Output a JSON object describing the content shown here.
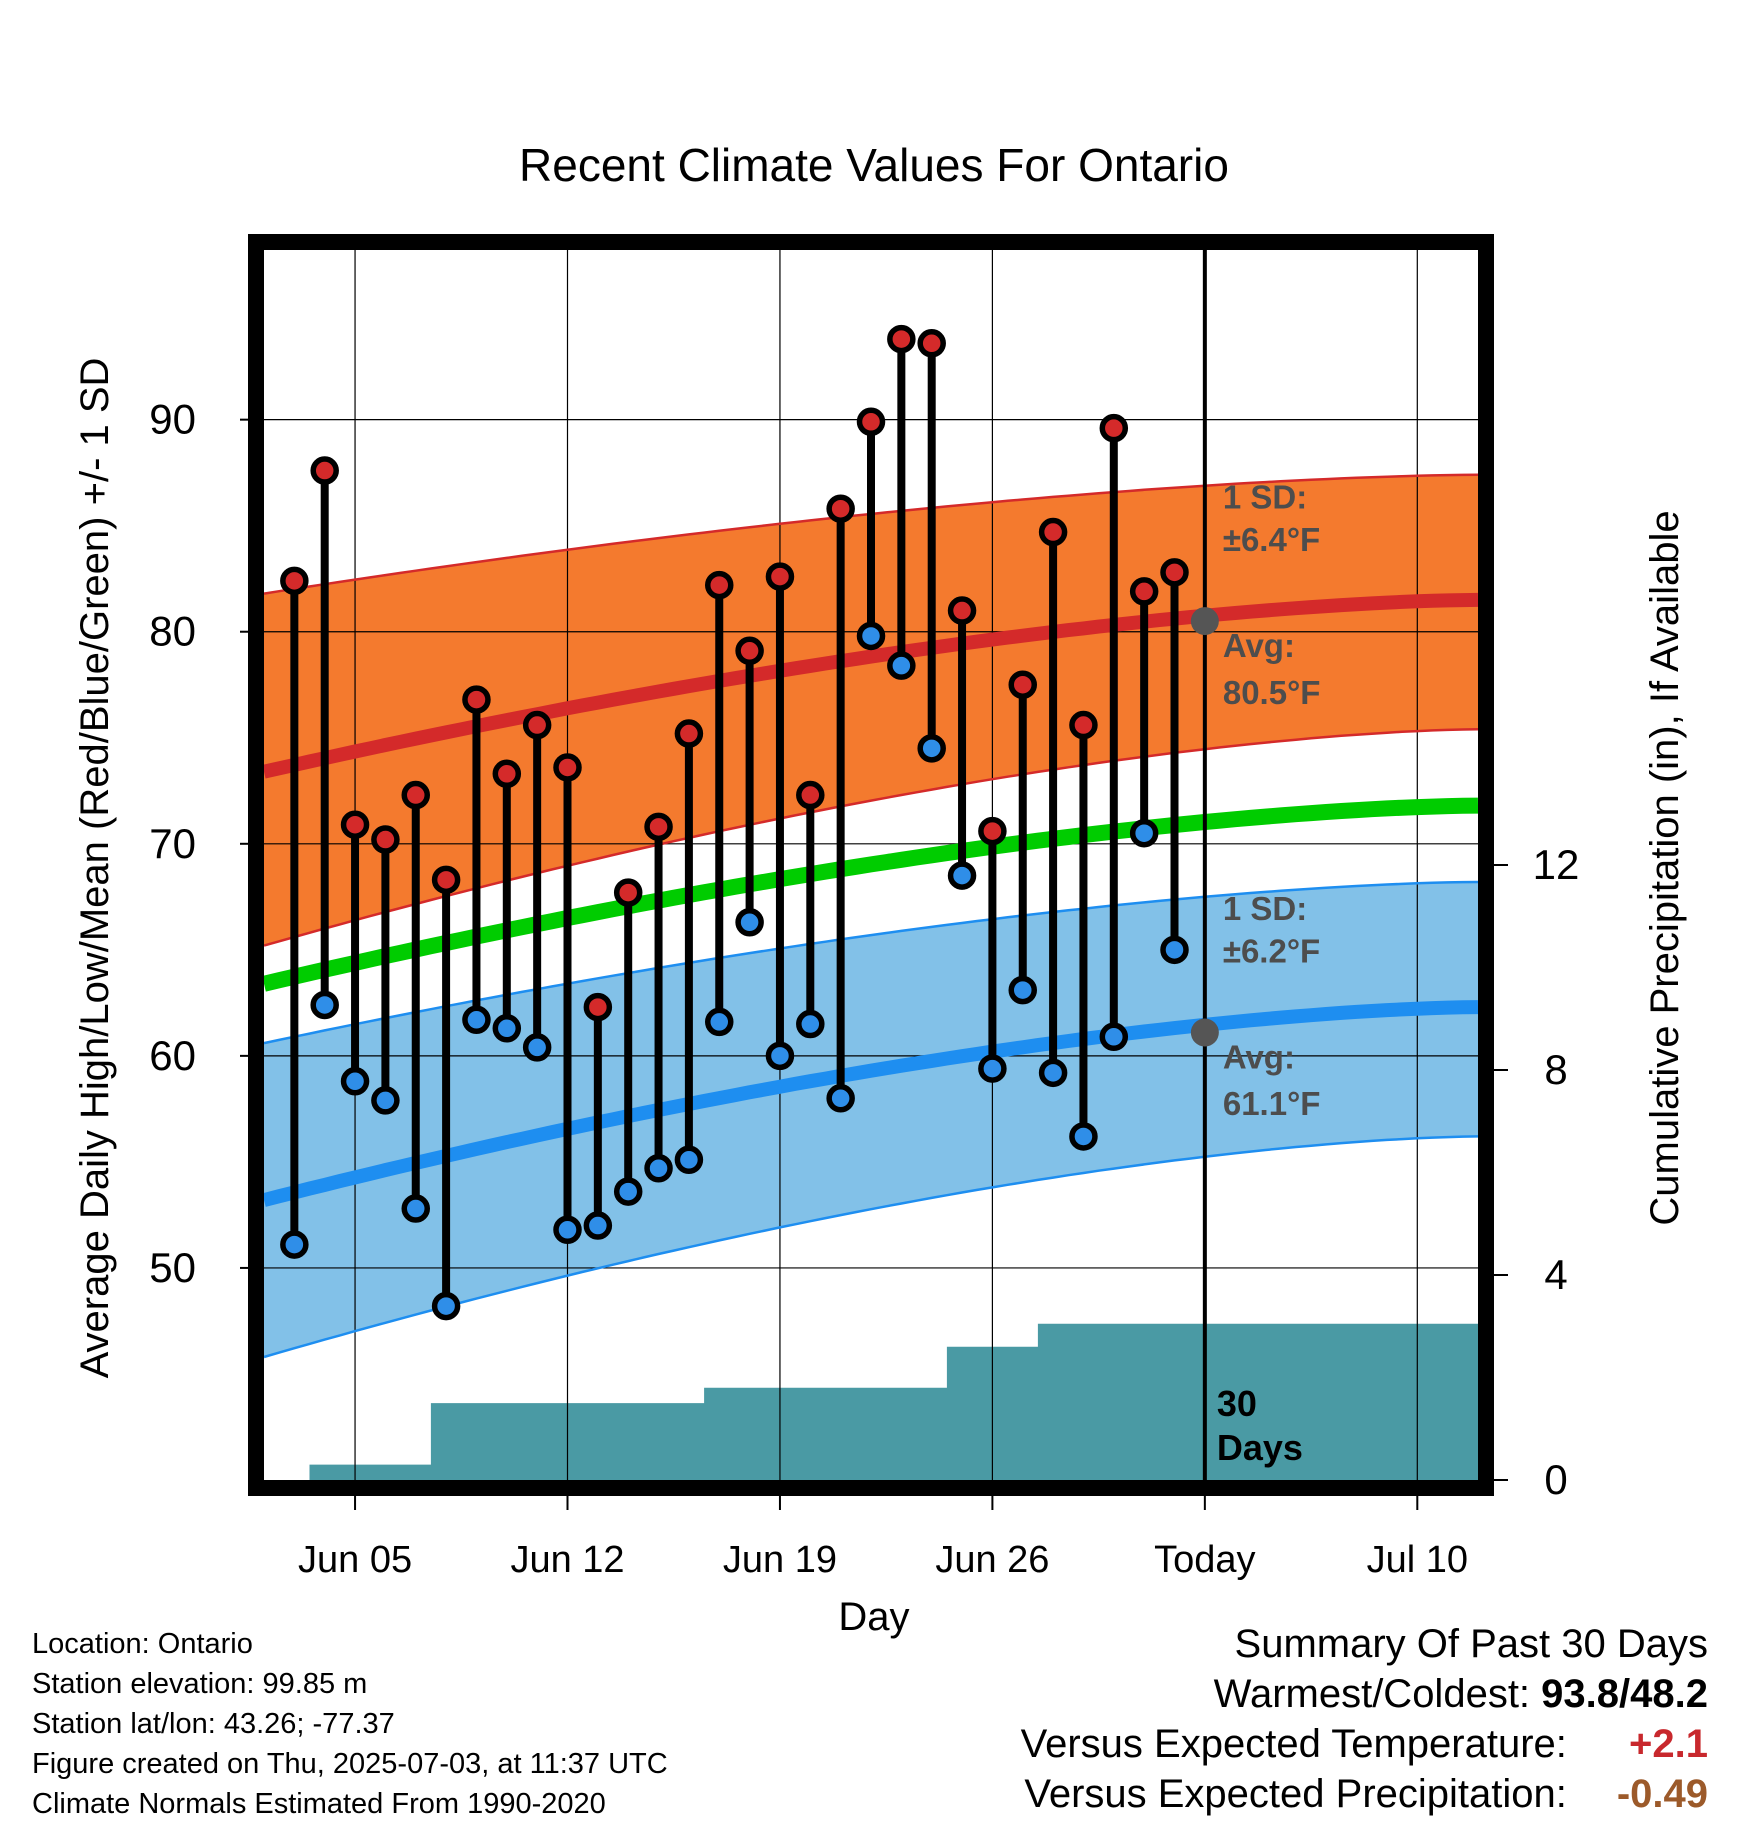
{
  "chart_data": {
    "type": "line",
    "title": "Recent Climate Values For Ontario",
    "xlabel": "Day",
    "ylabel": "Average Daily High/Low/Mean (Red/Blue/Green) +/- 1 SD",
    "y2label": "Cumulative Precipitation (in), If Available",
    "ylim": [
      40,
      98
    ],
    "y2lim": [
      0,
      24
    ],
    "yticks": [
      50,
      60,
      70,
      80,
      90
    ],
    "y2ticks": [
      0,
      4,
      8,
      12
    ],
    "x_range_days": [
      -31,
      9
    ],
    "xticks": [
      {
        "day": -28,
        "label": "Jun 05"
      },
      {
        "day": -21,
        "label": "Jun 12"
      },
      {
        "day": -14,
        "label": "Jun 19"
      },
      {
        "day": -7,
        "label": "Jun 26"
      },
      {
        "day": 0,
        "label": "Today"
      },
      {
        "day": 7,
        "label": "Jul 10"
      }
    ],
    "grid": true,
    "today_label": "30 Days",
    "normals": {
      "high_mean": {
        "start": 73.4,
        "end": 81.5
      },
      "high_sd_upper": {
        "start": 81.8,
        "end": 87.4
      },
      "high_sd_lower": {
        "start": 65.2,
        "end": 75.4
      },
      "mean": {
        "start": 63.4,
        "end": 71.8
      },
      "low_mean": {
        "start": 53.2,
        "end": 62.3
      },
      "low_sd_upper": {
        "start": 60.6,
        "end": 68.2
      },
      "low_sd_lower": {
        "start": 45.8,
        "end": 56.2
      }
    },
    "annotations": [
      {
        "label": "1 SD:",
        "value": "±6.4°F"
      },
      {
        "label": "Avg:",
        "value": "80.5°F"
      },
      {
        "label": "1 SD:",
        "value": "±6.2°F"
      },
      {
        "label": "Avg:",
        "value": "61.1°F"
      }
    ],
    "today_avg_high": 80.5,
    "today_avg_low": 61.1,
    "series": [
      {
        "name": "High",
        "color": "#d42a2a",
        "x": [
          -30,
          -29,
          -28,
          -27,
          -26,
          -25,
          -24,
          -23,
          -22,
          -21,
          -20,
          -19,
          -18,
          -17,
          -16,
          -15,
          -14,
          -13,
          -12,
          -11,
          -10,
          -9,
          -8,
          -7,
          -6,
          -5,
          -4,
          -3,
          -2,
          -1
        ],
        "values": [
          82.4,
          87.6,
          70.9,
          70.2,
          72.3,
          68.3,
          76.8,
          73.3,
          75.6,
          73.6,
          62.3,
          67.7,
          70.8,
          75.2,
          82.2,
          79.1,
          82.6,
          72.3,
          85.8,
          89.9,
          93.8,
          93.6,
          81.0,
          70.6,
          77.5,
          84.7,
          75.6,
          89.6,
          81.9,
          82.8
        ]
      },
      {
        "name": "Low",
        "color": "#2f8ee8",
        "x": [
          -30,
          -29,
          -28,
          -27,
          -26,
          -25,
          -24,
          -23,
          -22,
          -21,
          -20,
          -19,
          -18,
          -17,
          -16,
          -15,
          -14,
          -13,
          -12,
          -11,
          -10,
          -9,
          -8,
          -7,
          -6,
          -5,
          -4,
          -3,
          -2,
          -1
        ],
        "values": [
          51.1,
          62.4,
          58.8,
          57.9,
          52.8,
          48.2,
          61.7,
          61.3,
          60.4,
          51.8,
          52.0,
          53.6,
          54.7,
          55.1,
          61.6,
          66.3,
          60.0,
          61.5,
          58.0,
          79.8,
          78.4,
          74.5,
          68.5,
          59.4,
          63.1,
          59.2,
          56.2,
          60.9,
          70.5,
          65.0
        ]
      },
      {
        "name": "Cumulative Precipitation",
        "x": [
          -29,
          -28,
          -27,
          -26,
          -25,
          -24,
          -23,
          -22,
          -21,
          -20,
          -19,
          -18,
          -17,
          -16,
          -15,
          -14,
          -13,
          -12,
          -11,
          -10,
          -9,
          -8,
          -7,
          -6,
          -5,
          -4,
          -3,
          -2,
          -1,
          0,
          1,
          2,
          3,
          4,
          5,
          6,
          7,
          8,
          9
        ],
        "values": [
          0.3,
          0.3,
          0.3,
          0.3,
          1.5,
          1.5,
          1.5,
          1.5,
          1.5,
          1.5,
          1.5,
          1.5,
          1.5,
          1.8,
          1.8,
          1.8,
          1.8,
          1.8,
          1.8,
          1.8,
          1.8,
          2.6,
          2.6,
          2.6,
          3.05,
          3.05,
          3.05,
          3.05,
          3.05,
          3.05,
          3.05,
          3.05,
          3.05,
          3.05,
          3.05,
          3.05,
          3.05,
          3.05,
          3.05
        ]
      }
    ]
  },
  "info": {
    "location": "Location: Ontario",
    "elevation": "Station elevation: 99.85 m",
    "latlon": "Station lat/lon: 43.26; -77.37",
    "created": "Figure created on Thu, 2025-07-03, at 11:37 UTC",
    "normals": "Climate Normals Estimated From 1990-2020"
  },
  "summary": {
    "title": "Summary Of Past 30 Days",
    "warmest_label": "Warmest/Coldest:",
    "warmest_value": "93.8/48.2",
    "temp_label": "Versus Expected Temperature:",
    "temp_value": "+2.1",
    "precip_label": "Versus Expected Precipitation:",
    "precip_value": "-0.49"
  },
  "colors": {
    "high_band": "#f47a2e",
    "high_line": "#d42a2a",
    "low_band": "#82c1e8",
    "low_line": "#1e8ef0",
    "mean_line": "#00cc00",
    "precip": "#4a9aa4"
  }
}
